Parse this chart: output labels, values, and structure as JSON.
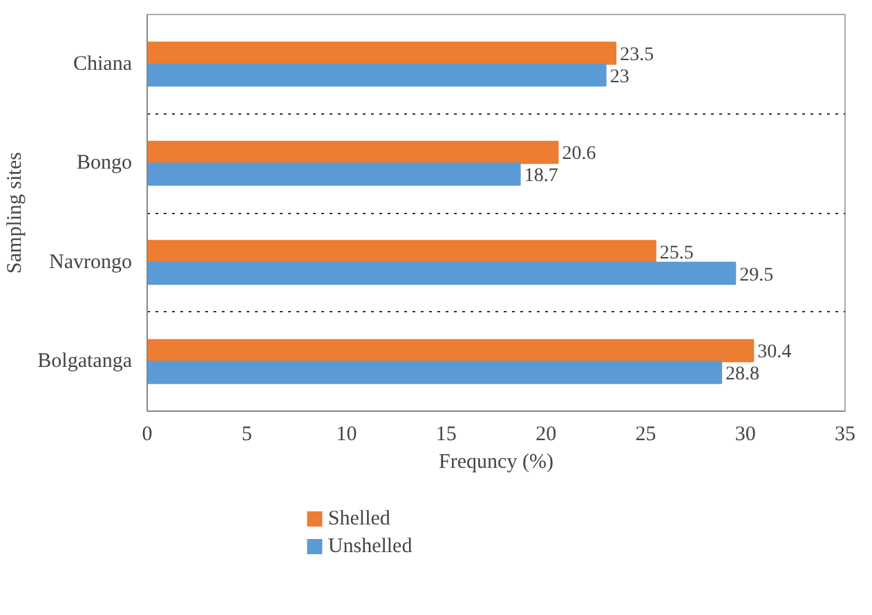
{
  "chart_data": {
    "type": "bar",
    "orientation": "horizontal",
    "categories": [
      "Chiana",
      "Bongo",
      "Navrongo",
      "Bolgatanga"
    ],
    "series": [
      {
        "name": "Shelled",
        "color": "#ed7d31",
        "values": [
          23.5,
          20.6,
          25.5,
          30.4
        ]
      },
      {
        "name": "Unshelled",
        "color": "#5b9bd5",
        "values": [
          23,
          18.7,
          29.5,
          28.8
        ]
      }
    ],
    "xlabel": "Frequncy (%)",
    "ylabel": "Sampling sites",
    "xlim": [
      0,
      35
    ],
    "xticks": [
      0,
      5,
      10,
      15,
      20,
      25,
      30,
      35
    ],
    "grid": "y",
    "legend": "bottom",
    "data_labels": true
  }
}
